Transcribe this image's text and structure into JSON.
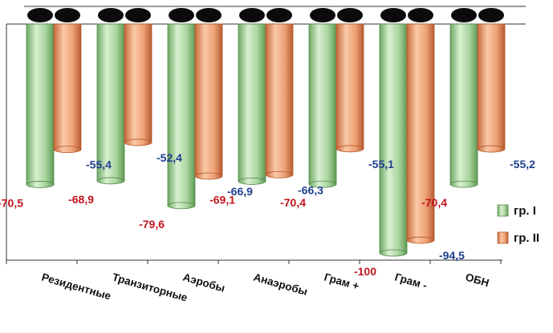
{
  "chart_data": {
    "type": "bar",
    "orientation": "vertical-negative",
    "categories": [
      "Резидентные",
      "Транзиторные",
      "Аэробы",
      "Анаэробы",
      "Грам +",
      "Грам -",
      "ОБН"
    ],
    "series": [
      {
        "name": "гр. I",
        "values": [
          -70.5,
          -68.9,
          -79.6,
          -69.1,
          -70.4,
          -100,
          -70.4
        ],
        "labels": [
          "-70,5",
          "-68,9",
          "-79,6",
          "-69,1",
          "-70,4",
          "-100",
          "-70,4"
        ]
      },
      {
        "name": "гр. II",
        "values": [
          -55.4,
          -52.4,
          -66.9,
          -66.3,
          -55.1,
          -94.5,
          -55.2
        ],
        "labels": [
          "-55,4",
          "-52,4",
          "-66,9",
          "-66,3",
          "-55,1",
          "-94,5",
          "-55,2"
        ]
      }
    ],
    "ylim": [
      -100,
      0
    ],
    "legend_position": "right",
    "colors": {
      "series1_fill": "#b9dfb0",
      "series1_dark": "#4f8a45",
      "series2_fill": "#f0a77c",
      "series2_dark": "#b5582a",
      "series1_label": "#c0151c",
      "series2_label": "#1f3f8f"
    }
  }
}
